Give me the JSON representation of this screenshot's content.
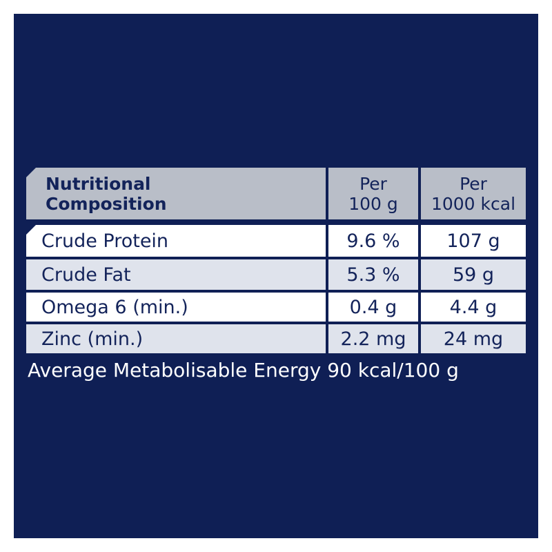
{
  "table": {
    "header": [
      [
        "Nutritional",
        "Composition"
      ],
      [
        "Per",
        "100 g"
      ],
      [
        "Per",
        "1000 kcal"
      ]
    ],
    "rows": [
      [
        "Crude Protein",
        "9.6 %",
        "107 g"
      ],
      [
        "Crude Fat",
        "5.3 %",
        "59 g"
      ],
      [
        "Omega 6 (min.)",
        "0.4 g",
        "4.4 g"
      ],
      [
        "Zinc (min.)",
        "2.2 mg",
        "24 mg"
      ]
    ]
  },
  "footer": "Average Metabolisable Energy 90 kcal/100 g"
}
